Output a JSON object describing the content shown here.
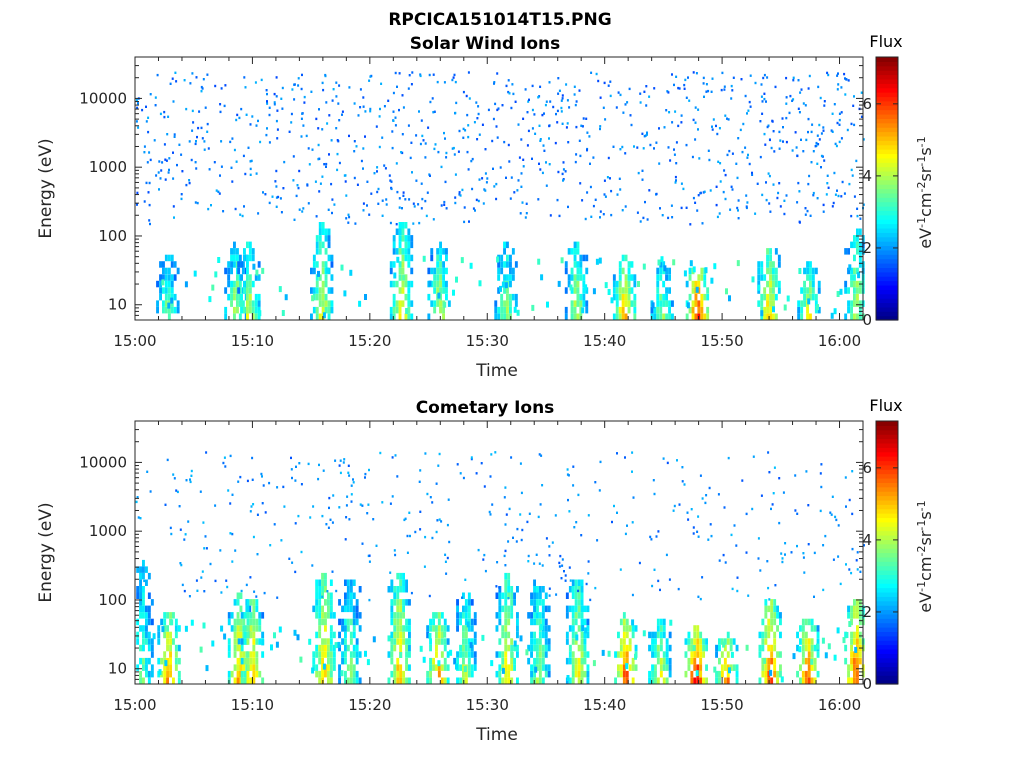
{
  "figure": {
    "title": "RPCICA151014T15.PNG"
  },
  "chart_data": [
    {
      "type": "heatmap",
      "title": "Solar Wind Ions",
      "xlabel": "Time",
      "ylabel": "Energy (eV)",
      "x_ticks": [
        "15:00",
        "15:10",
        "15:20",
        "15:30",
        "15:40",
        "15:50",
        "16:00"
      ],
      "x_range_minutes": [
        0,
        62
      ],
      "y_scale": "log",
      "y_ticks": [
        10,
        100,
        1000,
        10000
      ],
      "y_tick_labels": [
        "10",
        "100",
        "1000",
        "10000"
      ],
      "y_range": [
        6,
        40000
      ],
      "colorbar": {
        "title": "Flux",
        "ticks": [
          "0",
          "2",
          "4",
          "6"
        ],
        "range": [
          0,
          7.3
        ],
        "colormap": "jet",
        "label": "eV-1cm-2sr-1s-1"
      },
      "bursts_low_energy": [
        {
          "t": 2.7,
          "peak": 3.8,
          "top_eV": 40
        },
        {
          "t": 8.5,
          "peak": 4.2,
          "top_eV": 60
        },
        {
          "t": 9.6,
          "peak": 4.5,
          "top_eV": 55
        },
        {
          "t": 15.8,
          "peak": 4.6,
          "top_eV": 110
        },
        {
          "t": 22.6,
          "peak": 4.7,
          "top_eV": 120
        },
        {
          "t": 25.8,
          "peak": 4.4,
          "top_eV": 60
        },
        {
          "t": 31.5,
          "peak": 3.9,
          "top_eV": 60
        },
        {
          "t": 37.5,
          "peak": 4.3,
          "top_eV": 60
        },
        {
          "t": 41.6,
          "peak": 5.3,
          "top_eV": 40
        },
        {
          "t": 44.8,
          "peak": 4.0,
          "top_eV": 30
        },
        {
          "t": 47.8,
          "peak": 6.3,
          "top_eV": 30
        },
        {
          "t": 53.9,
          "peak": 5.0,
          "top_eV": 60
        },
        {
          "t": 57.3,
          "peak": 4.6,
          "top_eV": 30
        },
        {
          "t": 61.3,
          "peak": 4.3,
          "top_eV": 100
        }
      ],
      "scatter": {
        "energy_range_eV": [
          150,
          25000
        ],
        "typical_flux": 1.8,
        "density_per_min": 16
      }
    },
    {
      "type": "heatmap",
      "title": "Cometary Ions",
      "xlabel": "Time",
      "ylabel": "Energy (eV)",
      "x_ticks": [
        "15:00",
        "15:10",
        "15:20",
        "15:30",
        "15:40",
        "15:50",
        "16:00"
      ],
      "x_range_minutes": [
        0,
        62
      ],
      "y_scale": "log",
      "y_ticks": [
        10,
        100,
        1000,
        10000
      ],
      "y_tick_labels": [
        "10",
        "100",
        "1000",
        "10000"
      ],
      "y_range": [
        6,
        40000
      ],
      "colorbar": {
        "title": "Flux",
        "ticks": [
          "0",
          "2",
          "4",
          "6"
        ],
        "range": [
          0,
          7.3
        ],
        "colormap": "jet",
        "label": "eV-1cm-2sr-1s-1"
      },
      "bursts_low_energy": [
        {
          "t": 0.5,
          "peak": 3.6,
          "top_eV": 250
        },
        {
          "t": 2.8,
          "peak": 5.6,
          "top_eV": 50
        },
        {
          "t": 8.8,
          "peak": 5.4,
          "top_eV": 90
        },
        {
          "t": 9.9,
          "peak": 5.3,
          "top_eV": 80
        },
        {
          "t": 16.0,
          "peak": 5.2,
          "top_eV": 180
        },
        {
          "t": 18.2,
          "peak": 3.9,
          "top_eV": 160
        },
        {
          "t": 22.4,
          "peak": 5.2,
          "top_eV": 180
        },
        {
          "t": 25.7,
          "peak": 5.5,
          "top_eV": 50
        },
        {
          "t": 28.0,
          "peak": 4.2,
          "top_eV": 100
        },
        {
          "t": 31.6,
          "peak": 4.9,
          "top_eV": 170
        },
        {
          "t": 34.3,
          "peak": 4.1,
          "top_eV": 150
        },
        {
          "t": 37.6,
          "peak": 4.8,
          "top_eV": 150
        },
        {
          "t": 41.7,
          "peak": 6.2,
          "top_eV": 45
        },
        {
          "t": 44.6,
          "peak": 4.7,
          "top_eV": 40
        },
        {
          "t": 47.7,
          "peak": 6.7,
          "top_eV": 30
        },
        {
          "t": 50.3,
          "peak": 5.6,
          "top_eV": 25
        },
        {
          "t": 54.0,
          "peak": 6.0,
          "top_eV": 80
        },
        {
          "t": 57.2,
          "peak": 5.8,
          "top_eV": 50
        },
        {
          "t": 61.3,
          "peak": 6.1,
          "top_eV": 80
        }
      ],
      "scatter": {
        "energy_range_eV": [
          100,
          15000
        ],
        "typical_flux": 1.9,
        "density_per_min": 7
      }
    }
  ]
}
